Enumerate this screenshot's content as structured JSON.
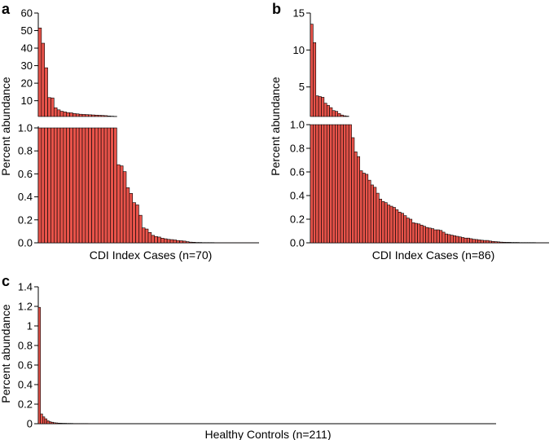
{
  "style": {
    "bar_color": "#e8534a",
    "axis_color": "#000000"
  },
  "chart_data": [
    {
      "panel": "a",
      "type": "bar",
      "ylabel": "Percent abundance",
      "xlabel": "CDI Index Cases (n=70)",
      "n": 70,
      "axis_break": true,
      "upper_axis": {
        "ylim": [
          1,
          60
        ],
        "ticks": [
          "10",
          "20",
          "30",
          "40",
          "50",
          "60"
        ]
      },
      "lower_axis": {
        "ylim": [
          0,
          1
        ],
        "ticks": [
          "0.0",
          "0.2",
          "0.4",
          "0.6",
          "0.8",
          "1.0"
        ]
      },
      "values": [
        51.5,
        42.8,
        28.8,
        11.8,
        11.6,
        6.0,
        4.8,
        4.0,
        3.6,
        3.2,
        3.1,
        2.7,
        2.5,
        2.3,
        2.2,
        2.1,
        2.0,
        1.9,
        1.8,
        1.7,
        1.6,
        1.5,
        1.3,
        1.2,
        1.1,
        0.68,
        0.67,
        0.62,
        0.48,
        0.43,
        0.35,
        0.33,
        0.24,
        0.13,
        0.12,
        0.09,
        0.065,
        0.055,
        0.05,
        0.04,
        0.035,
        0.03,
        0.028,
        0.025,
        0.02,
        0.018,
        0.015,
        0.01,
        0.006,
        0.005,
        0.003,
        0.003,
        0.002,
        0.002,
        0.002,
        0.002,
        0.001,
        0.001,
        0.001,
        0.001,
        0.001,
        0.001,
        0.001,
        0.001,
        0.001,
        0.001,
        0.001,
        0.001,
        0.001,
        0.001
      ]
    },
    {
      "panel": "b",
      "type": "bar",
      "ylabel": "Percent abundance",
      "xlabel": "CDI Index Cases (n=86)",
      "n": 86,
      "axis_break": true,
      "upper_axis": {
        "ylim": [
          1,
          15
        ],
        "ticks": [
          "5",
          "10",
          "15"
        ]
      },
      "lower_axis": {
        "ylim": [
          0,
          1
        ],
        "ticks": [
          "0.0",
          "0.2",
          "0.4",
          "0.6",
          "0.8",
          "1.0"
        ]
      },
      "values": [
        13.5,
        11.0,
        3.8,
        3.7,
        3.6,
        2.8,
        2.5,
        2.2,
        1.8,
        1.7,
        1.4,
        1.2,
        1.1,
        1.05,
        1.0,
        0.89,
        0.77,
        0.73,
        0.61,
        0.59,
        0.58,
        0.53,
        0.49,
        0.47,
        0.42,
        0.37,
        0.35,
        0.34,
        0.32,
        0.31,
        0.3,
        0.28,
        0.26,
        0.25,
        0.23,
        0.21,
        0.2,
        0.17,
        0.165,
        0.16,
        0.15,
        0.14,
        0.13,
        0.125,
        0.12,
        0.11,
        0.11,
        0.105,
        0.09,
        0.075,
        0.07,
        0.065,
        0.06,
        0.055,
        0.05,
        0.045,
        0.04,
        0.04,
        0.035,
        0.03,
        0.028,
        0.025,
        0.022,
        0.02,
        0.02,
        0.015,
        0.012,
        0.01,
        0.008,
        0.006,
        0.005,
        0.004,
        0.004,
        0.003,
        0.003,
        0.003,
        0.002,
        0.002,
        0.002,
        0.002,
        0.002,
        0.002,
        0.001,
        0.001,
        0.001,
        0.001
      ]
    },
    {
      "panel": "c",
      "type": "bar",
      "ylabel": "Percent abundance",
      "xlabel": "Healthy Controls (n=211)",
      "n": 211,
      "axis_break": false,
      "ylim": [
        0,
        1.4
      ],
      "ticks": [
        "0",
        "0.2",
        "0.4",
        "0.6",
        "0.8",
        "1",
        "1.2",
        "1.4"
      ],
      "values": [
        1.19,
        0.1,
        0.07,
        0.05,
        0.03,
        0.02,
        0.015,
        0.01,
        0.008,
        0.006,
        0.005,
        0.004,
        0.004,
        0.003,
        0.003,
        0.003,
        0.002,
        0.002,
        0.002,
        0.002,
        0.002,
        0.002,
        0.002,
        0.001,
        0.001,
        0.001,
        0.001,
        0.001,
        0.001,
        0.001
      ]
    }
  ]
}
